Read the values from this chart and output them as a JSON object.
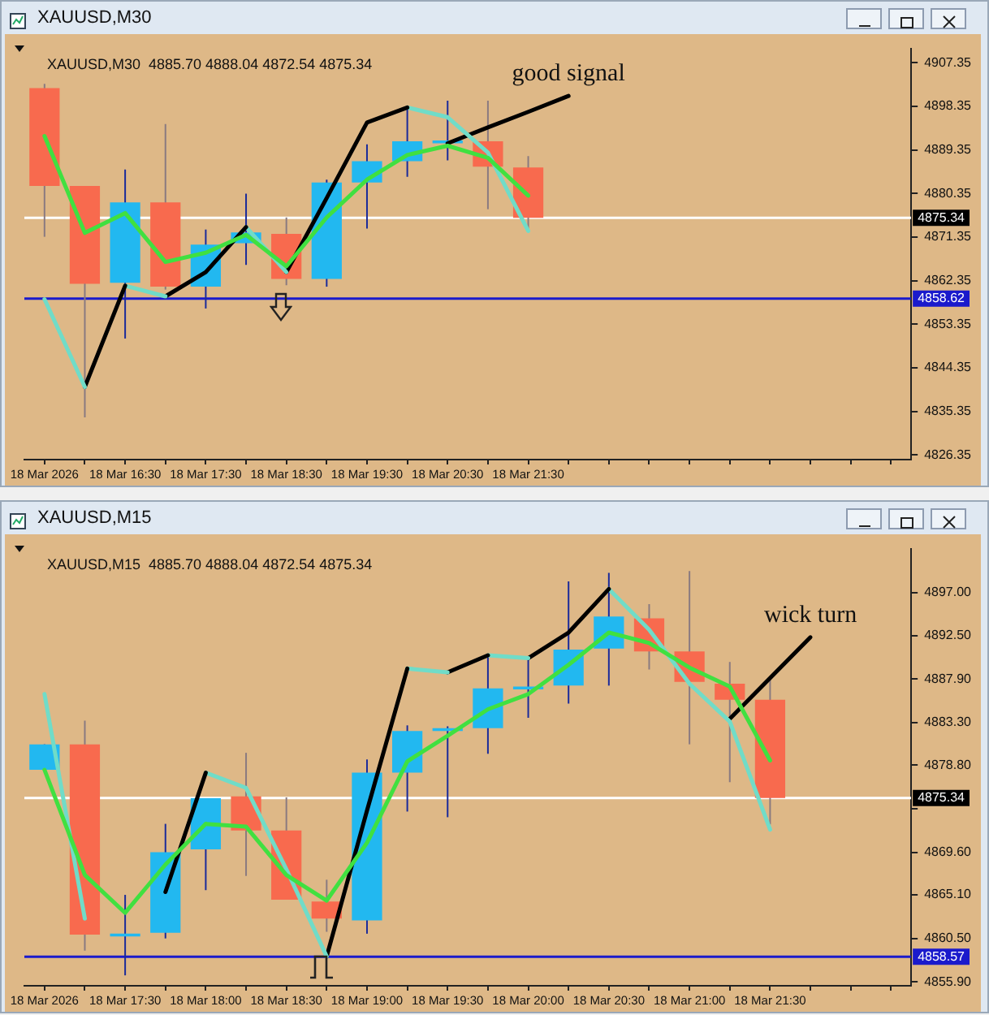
{
  "chart_data": [
    {
      "type": "candlestick",
      "title": "XAUUSD,M30",
      "subtitle": "XAUUSD,M30  4885.70 4888.04 4872.54 4875.34",
      "categories": [
        "18 Mar 2026",
        null,
        "18 Mar 16:30",
        null,
        "18 Mar 17:30",
        null,
        "18 Mar 18:30",
        null,
        "18 Mar 19:30",
        null,
        "18 Mar 20:30",
        null,
        "18 Mar 21:30",
        null,
        null,
        null,
        null,
        null,
        null,
        null,
        null,
        null
      ],
      "ohlc": [
        [
          4902.1,
          4903,
          4871.4,
          4881.9
        ],
        [
          4881.9,
          4881.9,
          4834.1,
          4861.7
        ],
        [
          4861.9,
          4885.3,
          4850.4,
          4878.5
        ],
        [
          4878.5,
          4894.7,
          4860.5,
          4861.1
        ],
        [
          4861.1,
          4872.9,
          4856.6,
          4869.8
        ],
        [
          4870.1,
          4880.3,
          4865.6,
          4872.3
        ],
        [
          4872.0,
          4875.4,
          4861.4,
          4862.7
        ],
        [
          4862.7,
          4883.2,
          4861.1,
          4882.6
        ],
        [
          4882.6,
          4890.5,
          4873.1,
          4887.0
        ],
        [
          4887.0,
          4898.4,
          4883.8,
          4891.1
        ],
        [
          4890.7,
          4899.5,
          4887.2,
          4891.3
        ],
        [
          4891.1,
          4899.5,
          4877.1,
          4885.9
        ],
        [
          4885.7,
          4888.04,
          4872.54,
          4875.34
        ],
        null,
        null,
        null,
        null,
        null,
        null,
        null,
        null,
        null
      ],
      "colors": [
        "#f86a4e",
        "#f86a4e",
        "#22b8f0",
        "#f86a4e",
        "#22b8f0",
        "#22b8f0",
        "#f86a4e",
        "#22b8f0",
        "#22b8f0",
        "#22b8f0",
        "#22b8f0",
        "#f86a4e",
        "#f86a4e",
        null,
        null,
        null,
        null,
        null,
        null,
        null,
        null,
        null
      ],
      "series": [
        {
          "type": "line",
          "color": "#40e040",
          "values": [
            4892.2,
            4872.2,
            4876.3,
            4866.2,
            4868.1,
            4871.8,
            4865.3,
            4875.4,
            4883.2,
            4888.3,
            4890.2,
            4887.7,
            4879.9,
            null,
            null,
            null,
            null,
            null,
            null,
            null,
            null,
            null
          ]
        },
        {
          "type": "line",
          "color": "#70dcc8",
          "values": [
            4858.5,
            4840.4,
            null,
            null,
            null,
            null,
            null,
            null,
            null,
            null,
            null,
            null,
            null,
            null,
            null,
            null,
            null,
            null,
            null,
            null,
            null,
            null
          ]
        },
        {
          "type": "line",
          "color": "#000000",
          "values": [
            null,
            4840.4,
            4861.3,
            null,
            null,
            null,
            null,
            null,
            null,
            null,
            null,
            null,
            null,
            null,
            null,
            null,
            null,
            null,
            null,
            null,
            null,
            null
          ]
        },
        {
          "type": "line",
          "color": "#70dcc8",
          "values": [
            null,
            null,
            4861.3,
            4859.1,
            null,
            null,
            null,
            null,
            null,
            null,
            null,
            null,
            null,
            null,
            null,
            null,
            null,
            null,
            null,
            null,
            null,
            null
          ]
        },
        {
          "type": "line",
          "color": "#000000",
          "values": [
            null,
            null,
            null,
            4859.1,
            4864.1,
            4873.4,
            null,
            null,
            null,
            null,
            null,
            null,
            null,
            null,
            null,
            null,
            null,
            null,
            null,
            null,
            null,
            null
          ]
        },
        {
          "type": "line",
          "color": "#70dcc8",
          "values": [
            null,
            null,
            null,
            null,
            null,
            4873.4,
            4864.1,
            null,
            null,
            null,
            null,
            null,
            null,
            null,
            null,
            null,
            null,
            null,
            null,
            null,
            null,
            null
          ]
        },
        {
          "type": "line",
          "color": "#000000",
          "values": [
            null,
            null,
            null,
            null,
            null,
            null,
            4864.1,
            4879.4,
            4895.0,
            4898.1,
            null,
            null,
            null,
            null,
            null,
            null,
            null,
            null,
            null,
            null,
            null,
            null
          ]
        },
        {
          "type": "line",
          "color": "#70dcc8",
          "values": [
            null,
            null,
            null,
            null,
            null,
            null,
            null,
            null,
            null,
            4898.1,
            4896.1,
            4888.8,
            4872.6,
            null,
            null,
            null,
            null,
            null,
            null,
            null,
            null,
            null
          ]
        },
        {
          "type": "line",
          "color": "#000000",
          "values": [
            null,
            null,
            null,
            null,
            null,
            null,
            null,
            null,
            null,
            null,
            4890.7,
            4894.0,
            4897.2,
            4900.5,
            null,
            null,
            null,
            null,
            null,
            null,
            null,
            null
          ]
        }
      ],
      "ylim": [
        4825.4,
        4910.3
      ],
      "yticks": [
        4907.35,
        4898.35,
        4889.35,
        4880.35,
        4871.35,
        4862.35,
        4853.35,
        4844.35,
        4835.35,
        4826.35
      ],
      "ref_lines": [
        {
          "axis": "y",
          "value": 4875.34,
          "label": "4875.34",
          "color": "#ffffff"
        },
        {
          "axis": "y",
          "value": 4858.62,
          "label": "4858.62",
          "color": "#1a1acc"
        }
      ],
      "annotations": [
        "good signal"
      ]
    },
    {
      "type": "candlestick",
      "title": "XAUUSD,M15",
      "subtitle": "XAUUSD,M15  4885.70 4888.04 4872.54 4875.34",
      "categories": [
        "18 Mar 2026",
        null,
        "18 Mar 17:30",
        null,
        "18 Mar 18:00",
        null,
        "18 Mar 18:30",
        null,
        "18 Mar 19:00",
        null,
        "18 Mar 19:30",
        null,
        "18 Mar 20:00",
        null,
        "18 Mar 20:30",
        null,
        "18 Mar 21:00",
        null,
        "18 Mar 21:30",
        null,
        null,
        null
      ],
      "ohlc": [
        [
          4878.3,
          4881.0,
          4878.3,
          4881.0
        ],
        [
          4881.0,
          4883.5,
          4859.2,
          4860.9
        ],
        [
          4860.7,
          4865.1,
          4856.6,
          4861.0
        ],
        [
          4861.1,
          4872.6,
          4860.5,
          4869.6
        ],
        [
          4869.9,
          4875.3,
          4865.6,
          4875.3
        ],
        [
          4875.5,
          4880.1,
          4867.1,
          4871.9
        ],
        [
          4871.9,
          4875.4,
          4864.6,
          4864.6
        ],
        [
          4864.4,
          4866.7,
          4861.2,
          4862.6
        ],
        [
          4862.4,
          4879.4,
          4861.0,
          4878.0
        ],
        [
          4878.0,
          4883.0,
          4873.9,
          4882.4
        ],
        [
          4882.4,
          4882.9,
          4873.3,
          4882.7
        ],
        [
          4882.7,
          4890.3,
          4880.0,
          4886.9
        ],
        [
          4886.8,
          4890.1,
          4883.8,
          4887.1
        ],
        [
          4887.2,
          4898.2,
          4885.3,
          4891.0
        ],
        [
          4891.1,
          4899.1,
          4887.2,
          4894.5
        ],
        [
          4894.3,
          4895.8,
          4888.9,
          4890.8
        ],
        [
          4890.8,
          4899.3,
          4881.0,
          4887.6
        ],
        [
          4887.4,
          4889.7,
          4877.0,
          4885.7
        ],
        [
          4885.7,
          4888.04,
          4872.54,
          4875.34
        ],
        null,
        null,
        null
      ],
      "colors": [
        "#22b8f0",
        "#f86a4e",
        "#22b8f0",
        "#22b8f0",
        "#22b8f0",
        "#f86a4e",
        "#f86a4e",
        "#f86a4e",
        "#22b8f0",
        "#22b8f0",
        "#22b8f0",
        "#22b8f0",
        "#22b8f0",
        "#22b8f0",
        "#22b8f0",
        "#f86a4e",
        "#f86a4e",
        "#f86a4e",
        "#f86a4e",
        null,
        null,
        null
      ],
      "series": [
        {
          "type": "line",
          "color": "#40e040",
          "values": [
            4878.3,
            4867.2,
            4863.2,
            4868.3,
            4872.6,
            4872.3,
            4867.2,
            4864.5,
            4870.6,
            4879.2,
            4881.9,
            4884.7,
            4886.3,
            4889.4,
            4892.8,
            4891.7,
            4889.1,
            4887.1,
            4879.3,
            null,
            null,
            null
          ]
        },
        {
          "type": "line",
          "color": "#70dcc8",
          "values": [
            4886.3,
            4862.6,
            null,
            null,
            null,
            null,
            null,
            null,
            null,
            null,
            null,
            null,
            null,
            null,
            null,
            null,
            null,
            null,
            null,
            null,
            null,
            null
          ]
        },
        {
          "type": "line",
          "color": "#000000",
          "values": [
            null,
            null,
            null,
            4865.4,
            4878.0,
            null,
            null,
            null,
            null,
            null,
            null,
            null,
            null,
            null,
            null,
            null,
            null,
            null,
            null,
            null,
            null,
            null
          ]
        },
        {
          "type": "line",
          "color": "#70dcc8",
          "values": [
            null,
            null,
            null,
            null,
            4878.0,
            4876.4,
            4867.8,
            4858.6,
            null,
            null,
            null,
            null,
            null,
            null,
            null,
            null,
            null,
            null,
            null,
            null,
            null,
            null
          ]
        },
        {
          "type": "line",
          "color": "#000000",
          "values": [
            null,
            null,
            null,
            null,
            null,
            null,
            null,
            4858.6,
            4874.0,
            4889.0,
            null,
            null,
            null,
            null,
            null,
            null,
            null,
            null,
            null,
            null,
            null,
            null
          ]
        },
        {
          "type": "line",
          "color": "#70dcc8",
          "values": [
            null,
            null,
            null,
            null,
            null,
            null,
            null,
            null,
            null,
            4889.0,
            4888.6,
            null,
            null,
            null,
            null,
            null,
            null,
            null,
            null,
            null,
            null,
            null
          ]
        },
        {
          "type": "line",
          "color": "#000000",
          "values": [
            null,
            null,
            null,
            null,
            null,
            null,
            null,
            null,
            null,
            null,
            4888.6,
            4890.4,
            null,
            null,
            null,
            null,
            null,
            null,
            null,
            null,
            null,
            null
          ]
        },
        {
          "type": "line",
          "color": "#70dcc8",
          "values": [
            null,
            null,
            null,
            null,
            null,
            null,
            null,
            null,
            null,
            null,
            null,
            4890.4,
            4890.1,
            null,
            null,
            null,
            null,
            null,
            null,
            null,
            null,
            null
          ]
        },
        {
          "type": "line",
          "color": "#000000",
          "values": [
            null,
            null,
            null,
            null,
            null,
            null,
            null,
            null,
            null,
            null,
            null,
            null,
            4890.1,
            4892.8,
            4897.4,
            null,
            null,
            null,
            null,
            null,
            null,
            null
          ]
        },
        {
          "type": "line",
          "color": "#70dcc8",
          "values": [
            null,
            null,
            null,
            null,
            null,
            null,
            null,
            null,
            null,
            null,
            null,
            null,
            null,
            null,
            4897.4,
            4893.1,
            4887.4,
            4883.4,
            4872.0,
            null,
            null,
            null
          ]
        },
        {
          "type": "line",
          "color": "#000000",
          "values": [
            null,
            null,
            null,
            null,
            null,
            null,
            null,
            null,
            null,
            null,
            null,
            null,
            null,
            null,
            null,
            null,
            null,
            4883.7,
            4888.0,
            4892.3,
            null,
            null
          ]
        }
      ],
      "ylim": [
        4855.5,
        4901.67
      ],
      "yticks": [
        {
          "value": 4897,
          "label": "4897.00"
        },
        {
          "value": 4892.5,
          "label": "4892.50"
        },
        {
          "value": 4887.9,
          "label": "4887.90"
        },
        {
          "value": 4883.3,
          "label": "4883.30"
        },
        {
          "value": 4878.8,
          "label": "4878.80"
        },
        {
          "value": 4874.2,
          "label": null
        },
        {
          "value": 4869.6,
          "label": "4869.60"
        },
        {
          "value": 4865.1,
          "label": "4865.10"
        },
        {
          "value": 4860.5,
          "label": "4860.50"
        },
        {
          "value": 4855.9,
          "label": "4855.90"
        }
      ],
      "ref_lines": [
        {
          "axis": "y",
          "value": 4875.34,
          "label": "4875.34",
          "color": "#ffffff"
        },
        {
          "axis": "y",
          "value": 4858.57,
          "label": "4858.57",
          "color": "#1a1acc"
        }
      ],
      "annotations": [
        "wick turn"
      ]
    }
  ]
}
